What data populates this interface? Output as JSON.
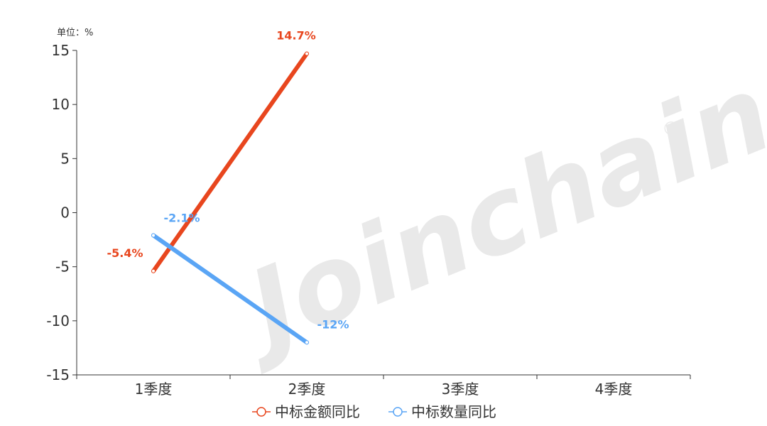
{
  "watermark": {
    "text": "Joinchain",
    "mark": "®"
  },
  "chart_data": {
    "type": "line",
    "unit_label": "单位：%",
    "categories": [
      "1季度",
      "2季度",
      "3季度",
      "4季度"
    ],
    "ylim": [
      -15,
      15
    ],
    "yticks": [
      15,
      10,
      5,
      0,
      -5,
      -10,
      -15
    ],
    "grid": false,
    "legend_position": "bottom-center",
    "series": [
      {
        "name": "中标金额同比",
        "color": "#e8461e",
        "values": [
          -5.4,
          14.7,
          null,
          null
        ],
        "labels": [
          "-5.4%",
          "14.7%",
          null,
          null
        ]
      },
      {
        "name": "中标数量同比",
        "color": "#5aa5f5",
        "values": [
          -2.1,
          -12,
          null,
          null
        ],
        "labels": [
          "-2.1%",
          "-12%",
          null,
          null
        ]
      }
    ]
  }
}
